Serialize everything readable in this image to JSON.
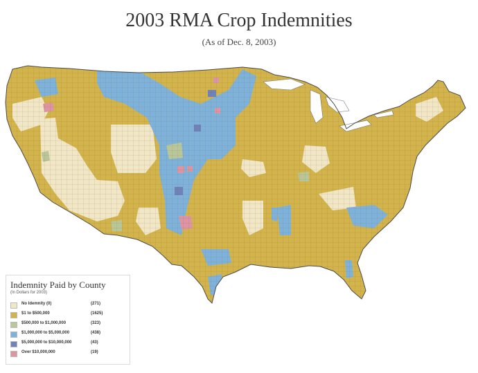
{
  "title": "2003 RMA Crop Indemnities",
  "subtitle": "(As of Dec. 8, 2003)",
  "legend": {
    "title": "Indemnity Paid by County",
    "subtitle": "(In Dollars for 2003)",
    "items": [
      {
        "label": "No Idemnity (0)",
        "count": "(271)",
        "color": "#f1e6c6"
      },
      {
        "label": "$1 to $500,000",
        "count": "(1625)",
        "color": "#d3b44c"
      },
      {
        "label": "$500,000 to $1,000,000",
        "count": "(323)",
        "color": "#b9c69a"
      },
      {
        "label": "$1,000,000 to $5,000,000",
        "count": "(438)",
        "color": "#7fb2da"
      },
      {
        "label": "$5,000,000 to $10,000,000",
        "count": "(43)",
        "color": "#6f82ba"
      },
      {
        "label": "Over $10,000,000",
        "count": "(19)",
        "color": "#dd95a4"
      }
    ]
  }
}
